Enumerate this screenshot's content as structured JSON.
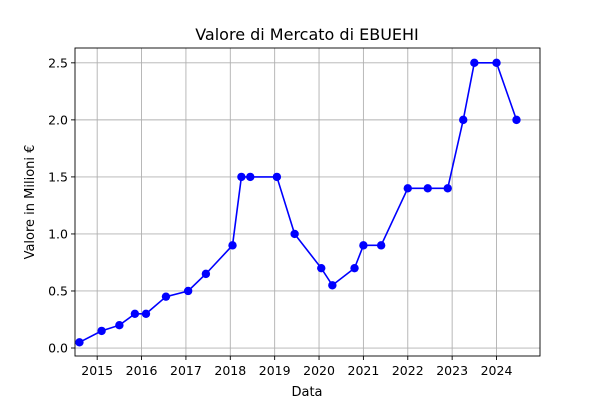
{
  "chart_data": {
    "type": "line",
    "title": "Valore di Mercato di EBUEHI",
    "xlabel": "Data",
    "ylabel": "Valore in Milioni €",
    "xlim": [
      2014.5,
      2024.98
    ],
    "ylim": [
      -0.07,
      2.63
    ],
    "x_ticks": [
      2015,
      2016,
      2017,
      2018,
      2019,
      2020,
      2021,
      2022,
      2023,
      2024
    ],
    "x_tick_labels": [
      "2015",
      "2016",
      "2017",
      "2018",
      "2019",
      "2020",
      "2021",
      "2022",
      "2023",
      "2024"
    ],
    "y_ticks": [
      0.0,
      0.5,
      1.0,
      1.5,
      2.0,
      2.5
    ],
    "y_tick_labels": [
      "0.0",
      "0.5",
      "1.0",
      "1.5",
      "2.0",
      "2.5"
    ],
    "grid": true,
    "series": [
      {
        "color": "#0000ff",
        "marker": "circle",
        "x": [
          2014.6,
          2015.1,
          2015.5,
          2015.85,
          2016.1,
          2016.55,
          2017.05,
          2017.45,
          2018.05,
          2018.25,
          2018.45,
          2019.05,
          2019.45,
          2020.05,
          2020.3,
          2020.8,
          2021.0,
          2021.4,
          2022.0,
          2022.45,
          2022.9,
          2023.25,
          2023.5,
          2024.0,
          2024.45
        ],
        "y": [
          0.05,
          0.15,
          0.2,
          0.3,
          0.3,
          0.45,
          0.5,
          0.65,
          0.9,
          1.5,
          1.5,
          1.5,
          1.0,
          0.7,
          0.55,
          0.7,
          0.9,
          0.9,
          1.4,
          1.4,
          1.4,
          2.0,
          2.5,
          2.5,
          2.0
        ]
      }
    ]
  }
}
